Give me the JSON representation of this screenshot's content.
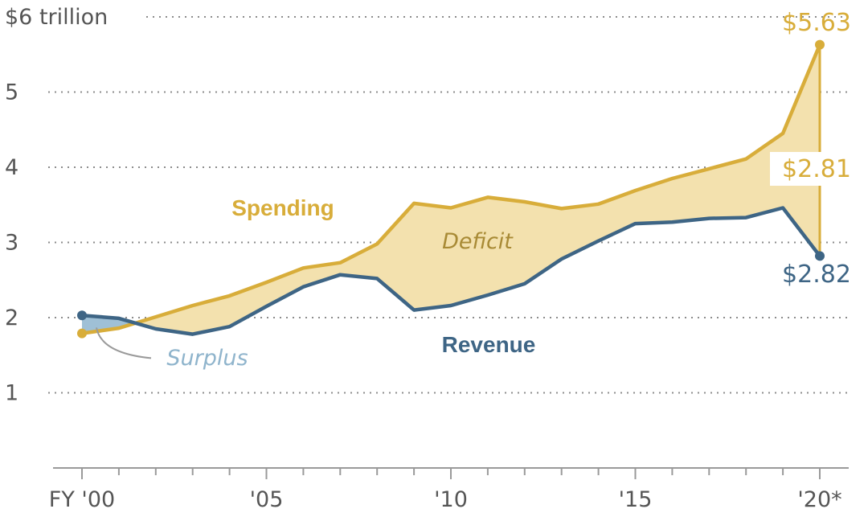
{
  "chart_data": {
    "type": "area",
    "title": "",
    "xlabel": "",
    "ylabel": "",
    "xlim": [
      2000,
      2020
    ],
    "ylim": [
      0,
      6
    ],
    "y_ticks": [
      {
        "value": 6,
        "label": "$6 trillion"
      },
      {
        "value": 5,
        "label": "5"
      },
      {
        "value": 4,
        "label": "4"
      },
      {
        "value": 3,
        "label": "3"
      },
      {
        "value": 2,
        "label": "2"
      },
      {
        "value": 1,
        "label": "1"
      }
    ],
    "x_tick_labels": [
      {
        "year": 2000,
        "label": "FY '00"
      },
      {
        "year": 2005,
        "label": "'05"
      },
      {
        "year": 2010,
        "label": "'10"
      },
      {
        "year": 2015,
        "label": "'15"
      },
      {
        "year": 2020,
        "label": "'20*"
      }
    ],
    "x": [
      2000,
      2001,
      2002,
      2003,
      2004,
      2005,
      2006,
      2007,
      2008,
      2009,
      2010,
      2011,
      2012,
      2013,
      2014,
      2015,
      2016,
      2017,
      2018,
      2019,
      2020
    ],
    "series": [
      {
        "name": "Spending",
        "color": "#d8ad3a",
        "values": [
          1.79,
          1.86,
          2.01,
          2.16,
          2.29,
          2.47,
          2.66,
          2.73,
          2.98,
          3.52,
          3.46,
          3.6,
          3.54,
          3.45,
          3.51,
          3.69,
          3.85,
          3.98,
          4.11,
          4.45,
          5.63
        ]
      },
      {
        "name": "Revenue",
        "color": "#3e6585",
        "values": [
          2.03,
          1.99,
          1.85,
          1.78,
          1.88,
          2.15,
          2.41,
          2.57,
          2.52,
          2.1,
          2.16,
          2.3,
          2.45,
          2.78,
          3.02,
          3.25,
          3.27,
          3.32,
          3.33,
          3.46,
          2.82
        ]
      }
    ],
    "annotations": {
      "spending_label": "Spending",
      "revenue_label": "Revenue",
      "deficit_label": "Deficit",
      "surplus_label": "Surplus",
      "spending_end_value": "$5.63",
      "deficit_value": "$2.81",
      "revenue_end_value": "$2.82"
    },
    "colors": {
      "spending": "#d8ad3a",
      "revenue": "#3e6585",
      "deficit_fill": "#f3e1ae",
      "surplus_fill": "#9fc0d6",
      "surplus_text": "#8fb4cc",
      "deficit_text": "#a88a35",
      "leader": "#9a9a9a"
    }
  }
}
